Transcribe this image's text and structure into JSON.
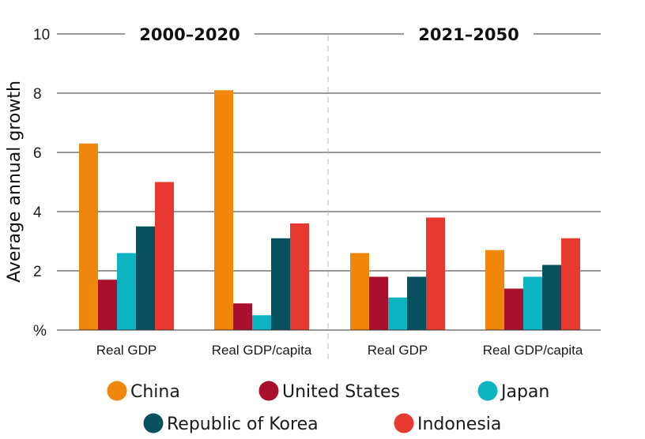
{
  "chart_data": {
    "type": "bar",
    "ylabel": "Average annual growth",
    "y_unit_label": "%",
    "ylim": [
      0,
      10
    ],
    "yticks": [
      2,
      4,
      6,
      8,
      10
    ],
    "grid": true,
    "legend_position": "bottom",
    "periods": [
      {
        "label": "2000–2020",
        "categories": [
          "Real GDP",
          "Real GDP/capita"
        ]
      },
      {
        "label": "2021–2050",
        "categories": [
          "Real GDP",
          "Real GDP/capita"
        ]
      }
    ],
    "categories": [
      "Real GDP",
      "Real GDP/capita",
      "Real GDP",
      "Real GDP/capita"
    ],
    "series": [
      {
        "name": "China",
        "color": "#F0870A",
        "values": [
          6.3,
          8.1,
          2.6,
          2.7
        ]
      },
      {
        "name": "United States",
        "color": "#A8102E",
        "values": [
          1.7,
          0.9,
          1.8,
          1.4
        ]
      },
      {
        "name": "Japan",
        "color": "#0DB3C0",
        "values": [
          2.6,
          0.5,
          1.1,
          1.8
        ]
      },
      {
        "name": "Republic of Korea",
        "color": "#07505E",
        "values": [
          3.5,
          3.1,
          1.8,
          2.2
        ]
      },
      {
        "name": "Indonesia",
        "color": "#E8392E",
        "values": [
          5.0,
          3.6,
          3.8,
          3.1
        ]
      }
    ]
  }
}
